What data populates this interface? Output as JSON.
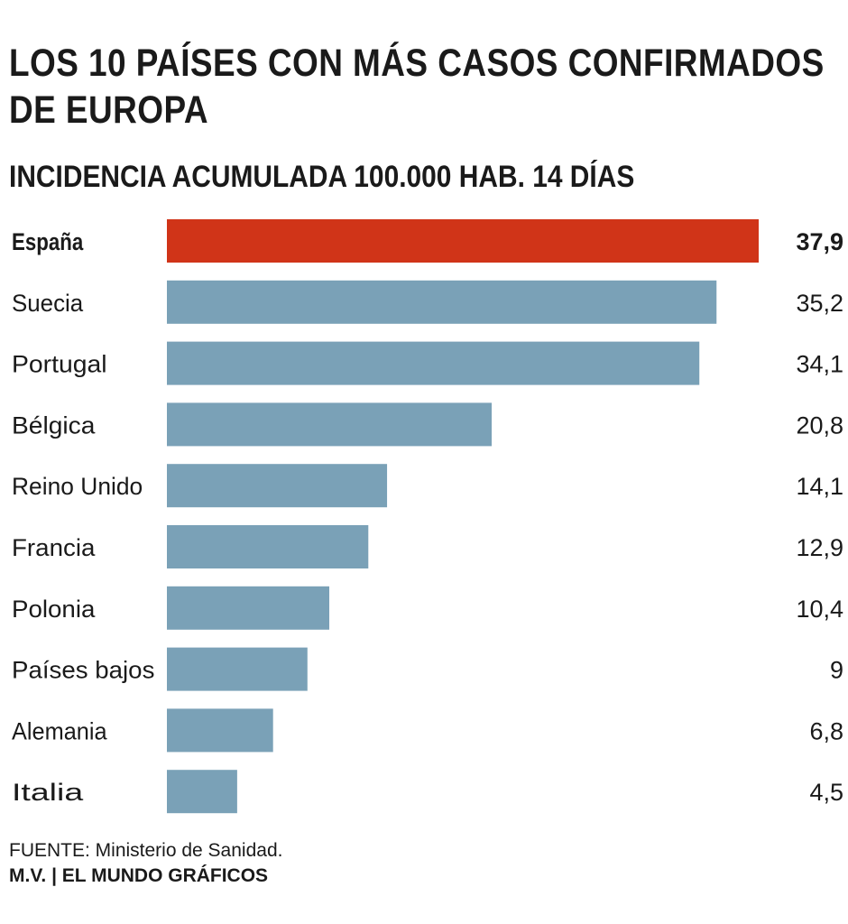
{
  "title": "LOS 10 PAÍSES CON MÁS CASOS CONFIRMADOS DE EUROPA",
  "subtitle": "INCIDENCIA ACUMULADA 100.000 HAB. 14 DÍAS",
  "source": "FUENTE: Ministerio de Sanidad.",
  "credit": "M.V. | EL MUNDO GRÁFICOS",
  "chart_data": {
    "type": "bar",
    "orientation": "horizontal",
    "title": "LOS 10 PAÍSES CON MÁS CASOS CONFIRMADOS DE EUROPA",
    "subtitle": "INCIDENCIA ACUMULADA 100.000 HAB. 14 DÍAS",
    "categories": [
      "España",
      "Suecia",
      "Portugal",
      "Bélgica",
      "Reino Unido",
      "Francia",
      "Polonia",
      "Países bajos",
      "Alemania",
      "Italia"
    ],
    "values": [
      37.9,
      35.2,
      34.1,
      20.8,
      14.1,
      12.9,
      10.4,
      9,
      6.8,
      4.5
    ],
    "value_labels": [
      "37,9",
      "35,2",
      "34,1",
      "20,8",
      "14,1",
      "12,9",
      "10,4",
      "9",
      "6,8",
      "4,5"
    ],
    "highlight": "España",
    "colors": {
      "highlight": "#d03418",
      "default": "#7aa1b7"
    },
    "xlim": [
      0,
      37.9
    ],
    "grid": false,
    "legend": "none"
  }
}
